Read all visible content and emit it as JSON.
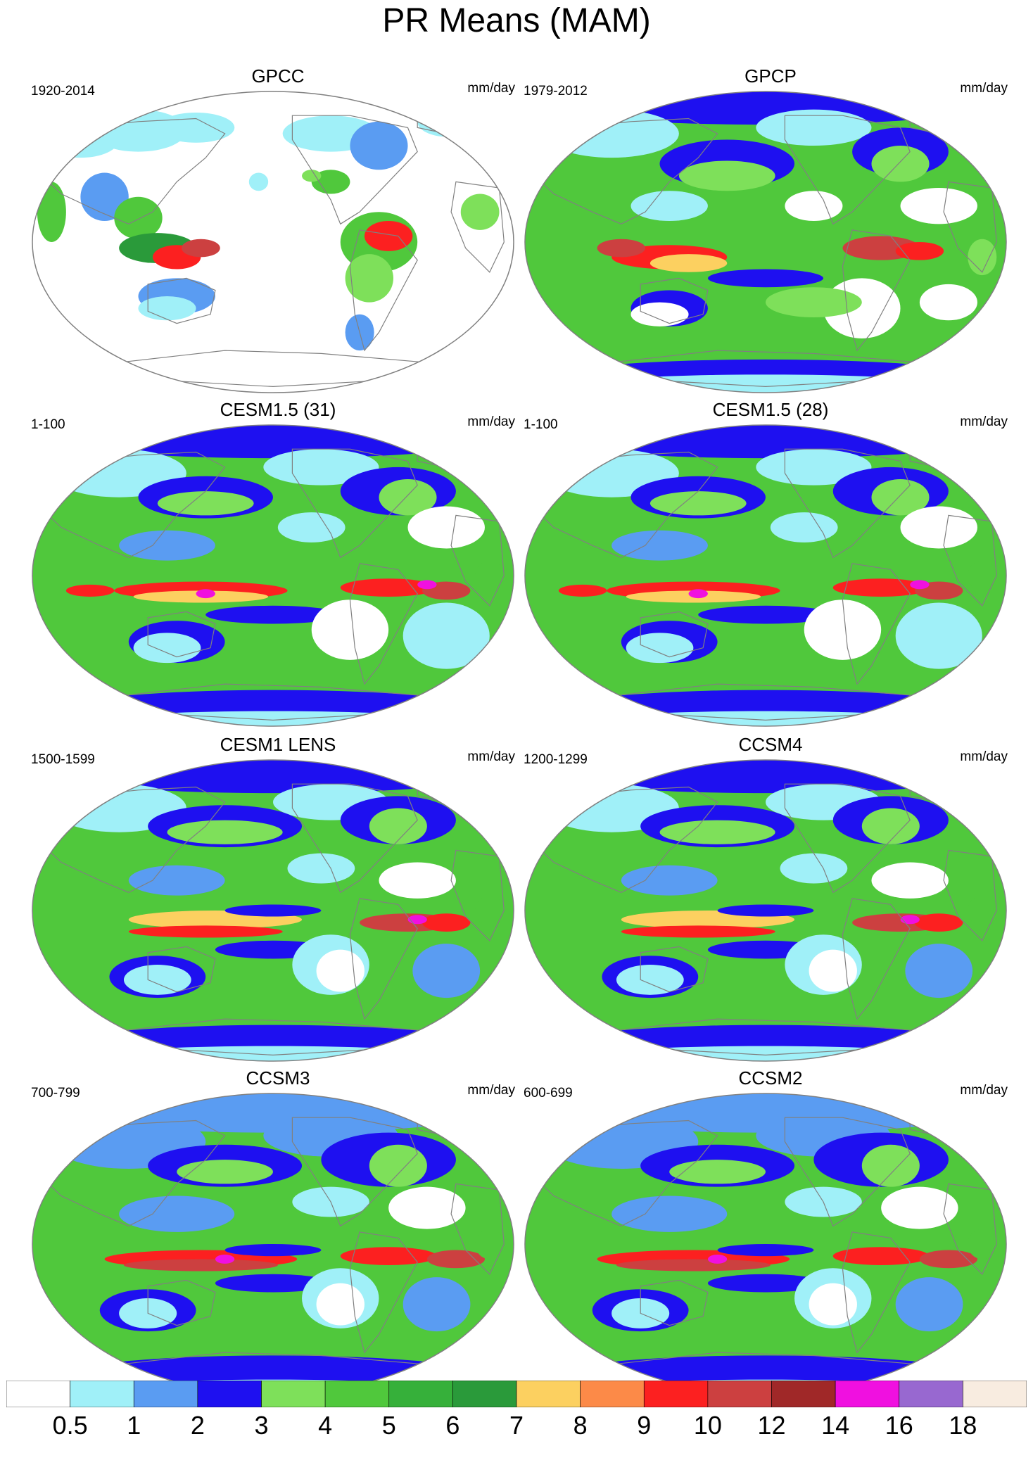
{
  "title": "PR Means (MAM)",
  "panels": [
    {
      "title": "GPCC",
      "period": "1920-2014",
      "units": "mm/day",
      "style": "obs_land"
    },
    {
      "title": "GPCP",
      "period": "1979-2012",
      "units": "mm/day",
      "style": "obs"
    },
    {
      "title": "CESM1.5 (31)",
      "period": "1-100",
      "units": "mm/day",
      "style": "model_a"
    },
    {
      "title": "CESM1.5 (28)",
      "period": "1-100",
      "units": "mm/day",
      "style": "model_a"
    },
    {
      "title": "CESM1 LENS",
      "period": "1500-1599",
      "units": "mm/day",
      "style": "model_b"
    },
    {
      "title": "CCSM4",
      "period": "1200-1299",
      "units": "mm/day",
      "style": "model_b"
    },
    {
      "title": "CCSM3",
      "period": "700-799",
      "units": "mm/day",
      "style": "model_c"
    },
    {
      "title": "CCSM2",
      "period": "600-699",
      "units": "mm/day",
      "style": "model_c"
    }
  ],
  "colorbar": {
    "labels": [
      "0.5",
      "1",
      "2",
      "3",
      "4",
      "5",
      "6",
      "7",
      "8",
      "9",
      "10",
      "12",
      "14",
      "16",
      "18"
    ],
    "colors": [
      "#ffffff",
      "#a0f0f8",
      "#5a9cf2",
      "#1e10f0",
      "#7ee05a",
      "#50c83c",
      "#36b03a",
      "#2a9a3a",
      "#fcd060",
      "#fc8a48",
      "#fc2020",
      "#cc4040",
      "#a02828",
      "#f010e0",
      "#9868d0",
      "#f8ece0"
    ]
  },
  "map_colors": {
    "ocean_bg": "#50c83c",
    "coastline": "#808080",
    "outline": "#808080"
  }
}
